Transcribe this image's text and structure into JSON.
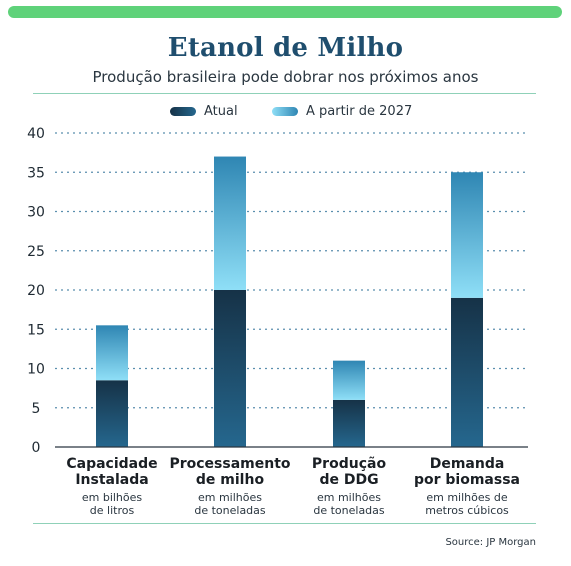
{
  "colors": {
    "top_bar": "#5fd27a",
    "title": "#1f4e6e",
    "atual_top": "#163247",
    "atual_bottom": "#25678e",
    "futuro_top": "#2f86b3",
    "futuro_bottom": "#8fdff7",
    "grid": "#5b8fae",
    "rule": "#8fd1b8"
  },
  "header": {
    "title": "Etanol de Milho",
    "subtitle": "Produção brasileira pode dobrar nos próximos anos"
  },
  "source": "Source: JP Morgan",
  "chart_data": {
    "type": "bar",
    "stacked": true,
    "categories": [
      "Capacidade\nInstalada",
      "Processamento\nde milho",
      "Produção\nde DDG",
      "Demanda\npor biomassa"
    ],
    "units": [
      "em bilhões\nde litros",
      "em milhões\nde toneladas",
      "em milhões\nde toneladas",
      "em milhões de\nmetros cúbicos"
    ],
    "series": [
      {
        "name": "Atual",
        "values": [
          8.5,
          20,
          6,
          19
        ]
      },
      {
        "name": "A partir de 2027",
        "values": [
          7,
          17,
          5,
          16
        ]
      }
    ],
    "ylim": [
      0,
      40
    ],
    "yticks": [
      0,
      5,
      10,
      15,
      20,
      25,
      30,
      35,
      40
    ],
    "grid": true,
    "legend_position": "top-center"
  }
}
